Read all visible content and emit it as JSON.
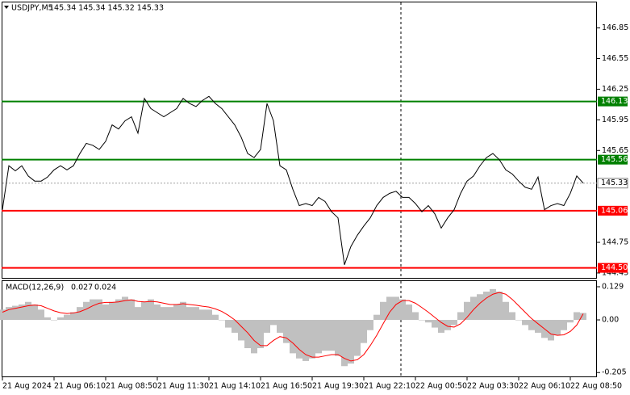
{
  "chart_data": [
    {
      "type": "line",
      "title": "USDJPY,M5",
      "subtitle": "145.34 145.34 145.32 145.33",
      "series": [
        {
          "color": "#000000",
          "values": [
            145.07,
            145.5,
            145.45,
            145.5,
            145.4,
            145.35,
            145.35,
            145.39,
            145.46,
            145.5,
            145.46,
            145.5,
            145.62,
            145.72,
            145.7,
            145.66,
            145.74,
            145.9,
            145.86,
            145.94,
            145.98,
            145.82,
            146.16,
            146.06,
            146.02,
            145.98,
            146.02,
            146.06,
            146.16,
            146.11,
            146.08,
            146.14,
            146.18,
            146.11,
            146.06,
            145.98,
            145.9,
            145.78,
            145.62,
            145.58,
            145.66,
            146.11,
            145.94,
            145.5,
            145.46,
            145.27,
            145.11,
            145.13,
            145.11,
            145.19,
            145.15,
            145.05,
            144.99,
            144.53,
            144.71,
            144.82,
            144.91,
            144.99,
            145.11,
            145.19,
            145.23,
            145.25,
            145.19,
            145.19,
            145.13,
            145.05,
            145.11,
            145.03,
            144.89,
            144.99,
            145.07,
            145.23,
            145.35,
            145.4,
            145.5,
            145.58,
            145.62,
            145.56,
            145.46,
            145.42,
            145.35,
            145.29,
            145.27,
            145.39,
            145.07,
            145.11,
            145.13,
            145.11,
            145.23,
            145.4,
            145.33
          ]
        }
      ],
      "ylim": [
        144.41,
        147.1
      ],
      "yticks": [
        146.85,
        146.55,
        146.25,
        145.95,
        145.65,
        144.75,
        144.45
      ],
      "levels": [
        {
          "value": 146.13,
          "color": "#008000"
        },
        {
          "value": 145.56,
          "color": "#008000"
        },
        {
          "value": 145.06,
          "color": "#ff0000"
        },
        {
          "value": 144.5,
          "label": "144.50",
          "color": "#ff0000"
        }
      ]
    },
    {
      "type": "combo",
      "title": "MACD(12,26,9)",
      "categories": [
        "21 Aug 2024",
        null,
        null,
        null,
        null,
        null,
        null,
        null,
        "21 Aug 06:10",
        null,
        null,
        null,
        null,
        null,
        null,
        null,
        "21 Aug 08:50",
        null,
        null,
        null,
        null,
        null,
        null,
        null,
        "21 Aug 11:30",
        null,
        null,
        null,
        null,
        null,
        null,
        null,
        "21 Aug 14:10",
        null,
        null,
        null,
        null,
        null,
        null,
        null,
        "21 Aug 16:50",
        null,
        null,
        null,
        null,
        null,
        null,
        null,
        "21 Aug 19:30",
        null,
        null,
        null,
        null,
        null,
        null,
        null,
        "21 Aug 22:10",
        null,
        null,
        null,
        null,
        null,
        null,
        null,
        "22 Aug 00:50",
        null,
        null,
        null,
        null,
        null,
        null,
        null,
        "22 Aug 03:30",
        null,
        null,
        null,
        null,
        null,
        null,
        null,
        "22 Aug 06:10",
        null,
        null,
        null,
        null,
        null,
        null,
        null,
        "22 Aug 08:50",
        null,
        null
      ],
      "series": [
        {
          "type": "bar",
          "color": "#c0c0c0",
          "values": [
            0.04,
            0.05,
            0.055,
            0.06,
            0.07,
            0.06,
            0.04,
            0.01,
            0.0,
            0.01,
            0.02,
            0.03,
            0.05,
            0.07,
            0.08,
            0.08,
            0.06,
            0.07,
            0.08,
            0.09,
            0.08,
            0.05,
            0.07,
            0.08,
            0.06,
            0.05,
            0.05,
            0.06,
            0.07,
            0.05,
            0.05,
            0.04,
            0.04,
            0.02,
            0.0,
            -0.03,
            -0.05,
            -0.08,
            -0.11,
            -0.13,
            -0.11,
            -0.05,
            -0.02,
            -0.05,
            -0.09,
            -0.13,
            -0.15,
            -0.16,
            -0.15,
            -0.13,
            -0.12,
            -0.12,
            -0.14,
            -0.18,
            -0.17,
            -0.14,
            -0.09,
            -0.04,
            0.02,
            0.07,
            0.09,
            0.09,
            0.08,
            0.06,
            0.03,
            0.0,
            -0.01,
            -0.03,
            -0.05,
            -0.04,
            -0.02,
            0.03,
            0.07,
            0.09,
            0.1,
            0.11,
            0.12,
            0.11,
            0.07,
            0.03,
            0.0,
            -0.02,
            -0.04,
            -0.05,
            -0.07,
            -0.08,
            -0.06,
            -0.04,
            -0.01,
            0.03,
            0.027
          ]
        },
        {
          "type": "line",
          "color": "#ff0000",
          "values": [
            0.03,
            0.04,
            0.045,
            0.05,
            0.055,
            0.058,
            0.055,
            0.045,
            0.035,
            0.028,
            0.025,
            0.027,
            0.032,
            0.042,
            0.055,
            0.065,
            0.068,
            0.068,
            0.07,
            0.075,
            0.078,
            0.072,
            0.07,
            0.072,
            0.07,
            0.065,
            0.06,
            0.06,
            0.063,
            0.06,
            0.057,
            0.053,
            0.05,
            0.043,
            0.033,
            0.018,
            0.0,
            -0.025,
            -0.05,
            -0.08,
            -0.1,
            -0.1,
            -0.08,
            -0.065,
            -0.07,
            -0.09,
            -0.115,
            -0.135,
            -0.145,
            -0.145,
            -0.14,
            -0.135,
            -0.135,
            -0.15,
            -0.16,
            -0.155,
            -0.135,
            -0.1,
            -0.06,
            -0.015,
            0.03,
            0.06,
            0.075,
            0.075,
            0.065,
            0.048,
            0.03,
            0.01,
            -0.01,
            -0.025,
            -0.028,
            -0.015,
            0.01,
            0.04,
            0.065,
            0.085,
            0.1,
            0.107,
            0.1,
            0.08,
            0.055,
            0.03,
            0.005,
            -0.015,
            -0.035,
            -0.055,
            -0.06,
            -0.058,
            -0.045,
            -0.02,
            0.024
          ]
        }
      ],
      "ylim": [
        -0.22,
        0.151
      ],
      "yticks": [
        0.129,
        {
          "value": 0,
          "label": "0.00"
        },
        -0.205
      ]
    }
  ]
}
